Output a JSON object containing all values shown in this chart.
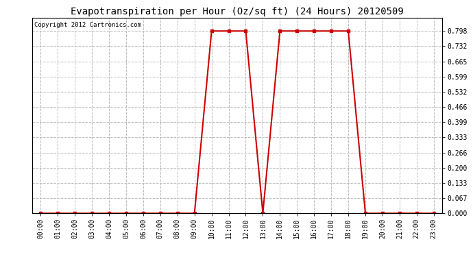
{
  "title": "Evapotranspiration per Hour (Oz/sq ft) (24 Hours) 20120509",
  "copyright_text": "Copyright 2012 Cartronics.com",
  "hours": [
    0,
    1,
    2,
    3,
    4,
    5,
    6,
    7,
    8,
    9,
    10,
    11,
    12,
    13,
    14,
    15,
    16,
    17,
    18,
    19,
    20,
    21,
    22,
    23
  ],
  "values": [
    0.0,
    0.0,
    0.0,
    0.0,
    0.0,
    0.0,
    0.0,
    0.0,
    0.0,
    0.0,
    0.798,
    0.798,
    0.798,
    0.0,
    0.798,
    0.798,
    0.798,
    0.798,
    0.798,
    0.0,
    0.0,
    0.0,
    0.0,
    0.0
  ],
  "yticks": [
    0.0,
    0.067,
    0.133,
    0.2,
    0.266,
    0.333,
    0.399,
    0.466,
    0.532,
    0.599,
    0.665,
    0.732,
    0.798
  ],
  "ylim": [
    0.0,
    0.855
  ],
  "xlim": [
    -0.5,
    23.5
  ],
  "line_color": "#cc0000",
  "marker": "s",
  "marker_size": 3,
  "bg_color": "#ffffff",
  "grid_color": "#bbbbbb",
  "title_fontsize": 10,
  "tick_fontsize": 7,
  "copyright_fontsize": 6.5
}
